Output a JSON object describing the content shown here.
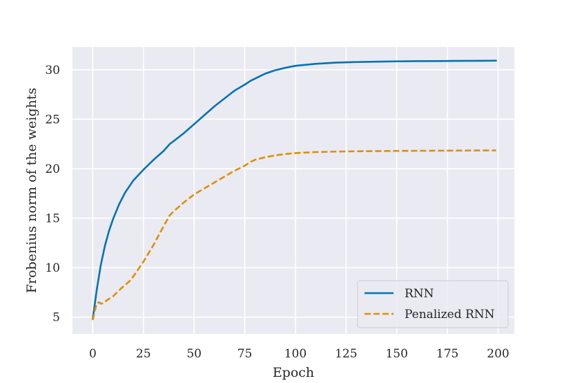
{
  "chart_data": {
    "type": "line",
    "title": "",
    "xlabel": "Epoch",
    "ylabel": "Frobenius norm of the weights",
    "xlim": [
      -10,
      208
    ],
    "ylim": [
      3.3,
      32.3
    ],
    "xticks": [
      0,
      25,
      50,
      75,
      100,
      125,
      150,
      175,
      200
    ],
    "xtick_labels": [
      "0",
      "25",
      "50",
      "75",
      "100",
      "125",
      "150",
      "175",
      "200"
    ],
    "yticks": [
      5,
      10,
      15,
      20,
      25,
      30
    ],
    "ytick_labels": [
      "5",
      "10",
      "15",
      "20",
      "25",
      "30"
    ],
    "grid": true,
    "legend_position": "lower right",
    "background_color": "#eaeaf2",
    "grid_color": "#ffffff",
    "series": [
      {
        "name": "RNN",
        "color": "#0173b2",
        "dash": "solid",
        "x": [
          0,
          2,
          4,
          6,
          8,
          10,
          13,
          16,
          20,
          25,
          30,
          35,
          38,
          40,
          45,
          50,
          55,
          60,
          65,
          70,
          75,
          78,
          80,
          85,
          90,
          95,
          100,
          110,
          120,
          130,
          140,
          150,
          160,
          170,
          180,
          190,
          199
        ],
        "y": [
          4.8,
          7.8,
          10.3,
          12.2,
          13.7,
          14.9,
          16.4,
          17.6,
          18.8,
          19.9,
          20.9,
          21.8,
          22.5,
          22.8,
          23.6,
          24.5,
          25.4,
          26.3,
          27.1,
          27.9,
          28.5,
          28.9,
          29.1,
          29.6,
          29.95,
          30.2,
          30.4,
          30.6,
          30.72,
          30.78,
          30.82,
          30.85,
          30.87,
          30.88,
          30.9,
          30.91,
          30.92
        ]
      },
      {
        "name": "Penalized RNN",
        "color": "#de8f05",
        "dash": "dashed",
        "x": [
          0,
          1,
          2,
          3,
          4,
          5,
          7,
          10,
          14,
          18,
          20,
          25,
          30,
          35,
          38,
          40,
          45,
          50,
          55,
          60,
          65,
          70,
          75,
          78,
          80,
          85,
          90,
          95,
          100,
          110,
          120,
          130,
          140,
          150,
          160,
          170,
          180,
          190,
          199
        ],
        "y": [
          4.7,
          5.6,
          6.4,
          6.5,
          6.35,
          6.4,
          6.7,
          7.1,
          7.9,
          8.6,
          9.1,
          10.6,
          12.3,
          14.2,
          15.3,
          15.7,
          16.6,
          17.4,
          18.0,
          18.6,
          19.2,
          19.8,
          20.3,
          20.7,
          20.9,
          21.15,
          21.35,
          21.48,
          21.58,
          21.68,
          21.73,
          21.76,
          21.78,
          21.8,
          21.81,
          21.82,
          21.83,
          21.84,
          21.85
        ]
      }
    ]
  }
}
